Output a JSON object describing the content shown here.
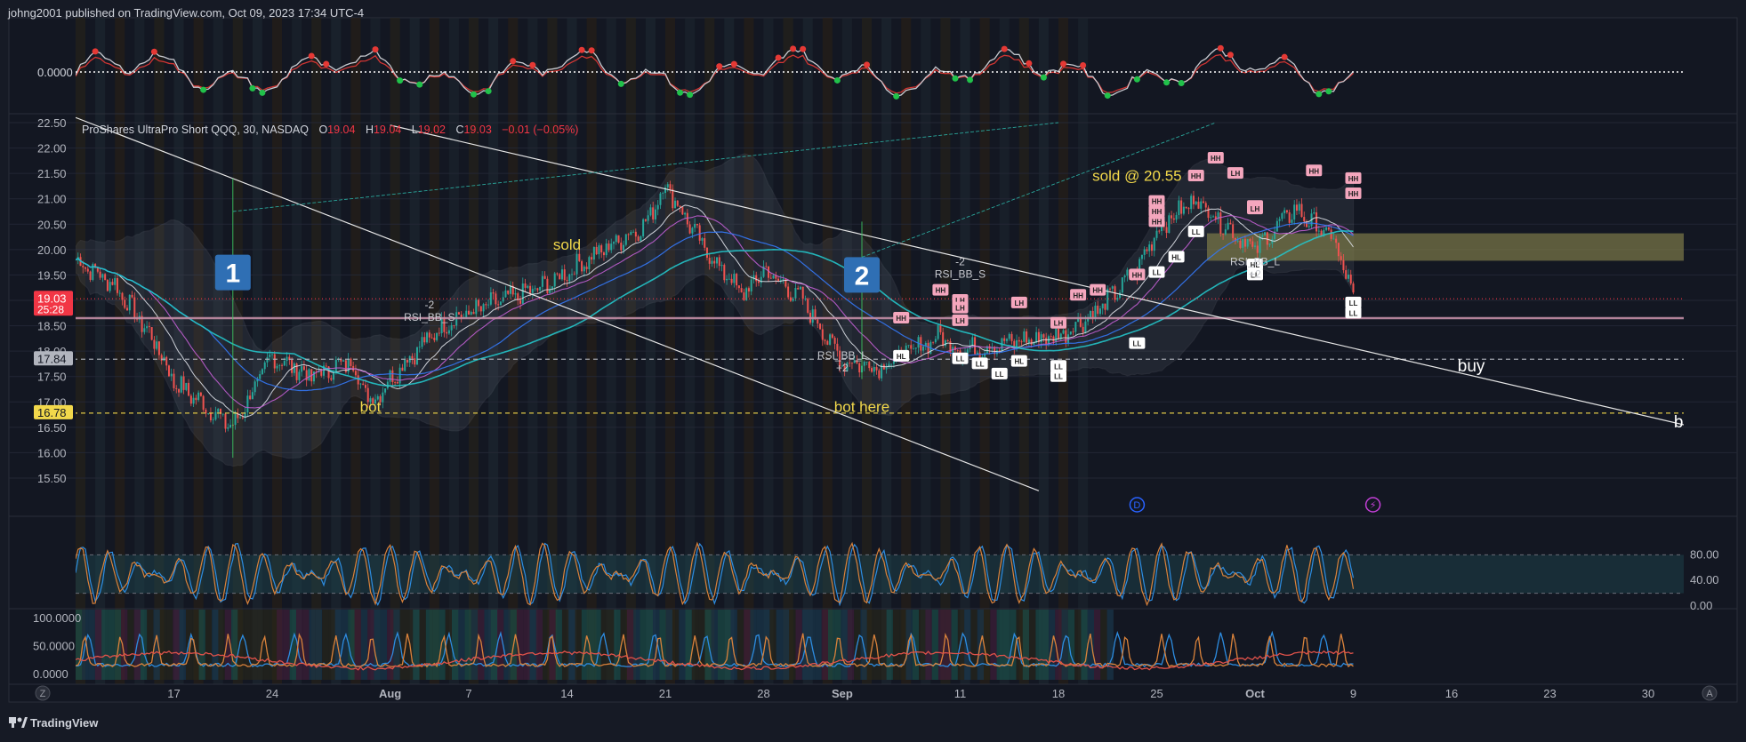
{
  "header": {
    "publish_line": "johng2001 published on TradingView.com, Oct 09, 2023 17:34 UTC-4"
  },
  "footer": {
    "brand": "TradingView",
    "left_button": "Z",
    "right_button": "A"
  },
  "legend": {
    "symbol": "ProShares UltraPro Short QQQ, 30, NASDAQ",
    "o_label": "O",
    "o_value": "19.04",
    "h_label": "H",
    "h_value": "19.04",
    "l_label": "L",
    "l_value": "19.02",
    "c_label": "C",
    "c_value": "19.03",
    "change": "−0.01 (−0.05%)"
  },
  "colors": {
    "background": "#161a25",
    "text": "#d1d4dc",
    "up_candle": "#26a69a",
    "down_candle": "#ef5350",
    "annotation_yellow": "#f2d84b",
    "label_blue": "#2f6fb4",
    "pivot_pink": "#f4a6bd",
    "osc_orange": "#d9823b",
    "osc_blue": "#2d8ce0",
    "zone_fill": "#7e7a48"
  },
  "chart_data": [
    {
      "type": "line",
      "panel": "top-oscillator",
      "y_ticks": [
        "0.0000"
      ],
      "zero_line": 0,
      "marker_colors": [
        "#21c14a",
        "#e53935"
      ]
    },
    {
      "type": "candlestick",
      "panel": "main-price",
      "title": "ProShares UltraPro Short QQQ, 30, NASDAQ",
      "ylim": [
        15.25,
        22.55
      ],
      "y_ticks": [
        "22.50",
        "22.00",
        "21.50",
        "21.00",
        "20.50",
        "20.00",
        "19.50",
        "19.00",
        "18.50",
        "18.00",
        "17.50",
        "17.00",
        "16.50",
        "16.00",
        "15.50"
      ],
      "x_ticks": [
        "17",
        "24",
        "Aug",
        "7",
        "14",
        "21",
        "28",
        "Sep",
        "11",
        "18",
        "25",
        "Oct",
        "9",
        "16",
        "23",
        "30"
      ],
      "price_path": [
        {
          "date": "Jul 10",
          "price": 19.8
        },
        {
          "date": "Jul 12",
          "price": 19.3
        },
        {
          "date": "Jul 14",
          "price": 18.2
        },
        {
          "date": "Jul 17",
          "price": 17.4
        },
        {
          "date": "Jul 19",
          "price": 16.8
        },
        {
          "date": "Jul 20",
          "price": 16.5
        },
        {
          "date": "Jul 21",
          "price": 17.2
        },
        {
          "date": "Jul 24",
          "price": 17.9
        },
        {
          "date": "Jul 26",
          "price": 17.5
        },
        {
          "date": "Jul 28",
          "price": 17.8
        },
        {
          "date": "Jul 31",
          "price": 17.0
        },
        {
          "date": "Aug 2",
          "price": 17.9
        },
        {
          "date": "Aug 4",
          "price": 18.6
        },
        {
          "date": "Aug 8",
          "price": 18.9
        },
        {
          "date": "Aug 11",
          "price": 19.3
        },
        {
          "date": "Aug 15",
          "price": 19.8
        },
        {
          "date": "Aug 18",
          "price": 20.5
        },
        {
          "date": "Aug 21",
          "price": 21.3
        },
        {
          "date": "Aug 23",
          "price": 20.0
        },
        {
          "date": "Aug 25",
          "price": 19.1
        },
        {
          "date": "Aug 28",
          "price": 19.6
        },
        {
          "date": "Aug 30",
          "price": 19.0
        },
        {
          "date": "Sep 1",
          "price": 17.8
        },
        {
          "date": "Sep 5",
          "price": 17.7
        },
        {
          "date": "Sep 8",
          "price": 18.3
        },
        {
          "date": "Sep 11",
          "price": 18.0
        },
        {
          "date": "Sep 14",
          "price": 18.2
        },
        {
          "date": "Sep 18",
          "price": 18.3
        },
        {
          "date": "Sep 20",
          "price": 18.8
        },
        {
          "date": "Sep 22",
          "price": 19.6
        },
        {
          "date": "Sep 25",
          "price": 20.4
        },
        {
          "date": "Sep 27",
          "price": 21.0
        },
        {
          "date": "Sep 29",
          "price": 20.3
        },
        {
          "date": "Oct 2",
          "price": 20.0
        },
        {
          "date": "Oct 4",
          "price": 20.8
        },
        {
          "date": "Oct 6",
          "price": 20.2
        },
        {
          "date": "Oct 9",
          "price": 19.03
        }
      ],
      "price_labels": [
        {
          "text": "19.03",
          "sub": "25:28",
          "value": 19.03,
          "color": "#f23645"
        },
        {
          "text": "17.84",
          "value": 17.84,
          "color": "#b2b5be"
        },
        {
          "text": "16.78",
          "value": 16.78,
          "color": "#f2d84b"
        }
      ],
      "horizontal_lines": [
        {
          "value": 17.84,
          "style": "dashed",
          "color": "#b2b5be"
        },
        {
          "value": 16.78,
          "style": "dashed",
          "color": "#f2d84b"
        },
        {
          "value": 19.03,
          "style": "dotted",
          "color": "#f23645"
        },
        {
          "value": 18.65,
          "style": "solid",
          "color": "#c48ea6"
        }
      ],
      "zone": {
        "from": 19.78,
        "to": 20.32
      },
      "annotations": [
        {
          "text": "sold",
          "date": "Aug 14",
          "price": 20.0,
          "color": "#f2d84b"
        },
        {
          "text": "bot",
          "date": "Jul 30",
          "price": 16.8,
          "color": "#f2d84b"
        },
        {
          "text": "bot here",
          "date": "Sep 4",
          "price": 16.8,
          "color": "#f2d84b"
        },
        {
          "text": "sold @ 20.55",
          "date": "Sep 22",
          "price": 21.35,
          "color": "#f2d84b"
        },
        {
          "text": "buy",
          "date": "Oct 17",
          "price": 17.6,
          "color": "#ffffff"
        },
        {
          "text": "buy",
          "date": "Nov 1",
          "price": 16.5,
          "color": "#ffffff"
        }
      ],
      "signals": [
        {
          "top": "-2",
          "bottom": "RSI_BB_S",
          "date": "Aug 3",
          "price": 18.6
        },
        {
          "top": "-2",
          "bottom": "RSI_BB_S",
          "date": "Sep 9",
          "price": 19.45
        },
        {
          "top": "RSI_BB_L",
          "bottom": "+2",
          "date": "Sep 1",
          "price": 17.6
        },
        {
          "top": "RSI_BB_L",
          "bottom": "+2",
          "date": "Oct 1",
          "price": 19.45
        }
      ],
      "numbered_labels": [
        {
          "text": "1",
          "date": "Jul 20",
          "price": 19.55
        },
        {
          "text": "2",
          "date": "Sep 4",
          "price": 19.5
        }
      ],
      "pivots": [
        {
          "t": "HH",
          "d": "Sep 6",
          "p": 18.65
        },
        {
          "t": "HH",
          "d": "Sep 8",
          "p": 19.2
        },
        {
          "t": "LH",
          "d": "Sep 9",
          "p": 19.0
        },
        {
          "t": "LH",
          "d": "Sep 10",
          "p": 18.85
        },
        {
          "t": "LH",
          "d": "Sep 11",
          "p": 18.6
        },
        {
          "t": "LH",
          "d": "Sep 14",
          "p": 18.95
        },
        {
          "t": "LH",
          "d": "Sep 16",
          "p": 18.55
        },
        {
          "t": "HH",
          "d": "Sep 19",
          "p": 19.1
        },
        {
          "t": "HH",
          "d": "Sep 20",
          "p": 19.2
        },
        {
          "t": "HH",
          "d": "Sep 22",
          "p": 19.5
        },
        {
          "t": "HH",
          "d": "Sep 23",
          "p": 20.75
        },
        {
          "t": "HH",
          "d": "Sep 24",
          "p": 20.55
        },
        {
          "t": "HH",
          "d": "Sep 25",
          "p": 20.95
        },
        {
          "t": "HH",
          "d": "Sep 27",
          "p": 21.45
        },
        {
          "t": "HH",
          "d": "Sep 28",
          "p": 21.8
        },
        {
          "t": "LH",
          "d": "Sep 29",
          "p": 21.5
        },
        {
          "t": "LH",
          "d": "Oct 1",
          "p": 20.85
        },
        {
          "t": "LH",
          "d": "Oct 2",
          "p": 20.8
        },
        {
          "t": "HH",
          "d": "Oct 5",
          "p": 21.55
        },
        {
          "t": "HH",
          "d": "Oct 7",
          "p": 21.1
        },
        {
          "t": "HH",
          "d": "Oct 9",
          "p": 21.4
        },
        {
          "t": "HL",
          "d": "Sep 6",
          "p": 17.9
        },
        {
          "t": "LL",
          "d": "Sep 10",
          "p": 17.85
        },
        {
          "t": "LL",
          "d": "Sep 12",
          "p": 17.75
        },
        {
          "t": "LL",
          "d": "Sep 13",
          "p": 17.55
        },
        {
          "t": "HL",
          "d": "Sep 14",
          "p": 17.8
        },
        {
          "t": "LL",
          "d": "Sep 16",
          "p": 17.7
        },
        {
          "t": "LL",
          "d": "Sep 17",
          "p": 17.5
        },
        {
          "t": "LL",
          "d": "Sep 22",
          "p": 18.15
        },
        {
          "t": "LL",
          "d": "Sep 24",
          "p": 19.55
        },
        {
          "t": "HL",
          "d": "Sep 26",
          "p": 19.85
        },
        {
          "t": "LL",
          "d": "Sep 27",
          "p": 20.35
        },
        {
          "t": "LL",
          "d": "Oct 1",
          "p": 19.5
        },
        {
          "t": "HL",
          "d": "Oct 2",
          "p": 19.7
        },
        {
          "t": "LL",
          "d": "Oct 8",
          "p": 18.95
        },
        {
          "t": "LL",
          "d": "Oct 9",
          "p": 18.75
        }
      ],
      "event_markers": [
        {
          "text": "D",
          "date": "Sep 22",
          "color": "#2962ff"
        },
        {
          "text": "⚡",
          "date": "Oct 10",
          "color": "#c23fd6"
        }
      ]
    },
    {
      "type": "line",
      "panel": "stochastic",
      "ylim": [
        0,
        100
      ],
      "y_ticks": [
        "80.00",
        "40.00",
        "0.00"
      ],
      "band": [
        20,
        80
      ],
      "series_colors": [
        "#2d8ce0",
        "#d9823b"
      ]
    },
    {
      "type": "line",
      "panel": "bottom-oscillator",
      "ylim": [
        0,
        100
      ],
      "y_ticks": [
        "100.0000",
        "50.0000",
        "0.0000"
      ],
      "series_colors": [
        "#2d8ce0",
        "#d9823b",
        "#e0524a"
      ]
    }
  ]
}
